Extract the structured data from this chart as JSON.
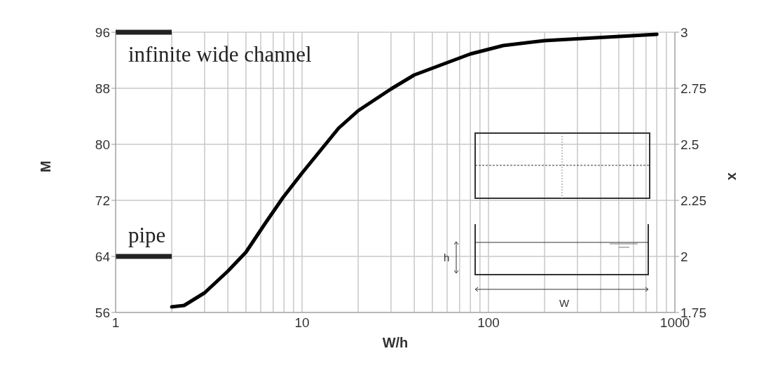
{
  "chart_data": {
    "type": "line",
    "xlabel": "W/h",
    "ylabel": "M",
    "y2label": "x",
    "log": "x",
    "xlim": [
      1,
      1000
    ],
    "xticks": [
      1,
      {
        "value": 2,
        "label": null
      },
      {
        "value": 3,
        "label": null
      },
      {
        "value": 4,
        "label": null
      },
      {
        "value": 5,
        "label": null
      },
      {
        "value": 6,
        "label": null
      },
      {
        "value": 7,
        "label": null
      },
      {
        "value": 8,
        "label": null
      },
      {
        "value": 9,
        "label": null
      },
      10,
      {
        "value": 20,
        "label": null
      },
      {
        "value": 30,
        "label": null
      },
      {
        "value": 40,
        "label": null
      },
      {
        "value": 50,
        "label": null
      },
      {
        "value": 60,
        "label": null
      },
      {
        "value": 70,
        "label": null
      },
      {
        "value": 80,
        "label": null
      },
      {
        "value": 90,
        "label": null
      },
      100,
      {
        "value": 200,
        "label": null
      },
      {
        "value": 300,
        "label": null
      },
      {
        "value": 400,
        "label": null
      },
      {
        "value": 500,
        "label": null
      },
      {
        "value": 600,
        "label": null
      },
      {
        "value": 700,
        "label": null
      },
      {
        "value": 800,
        "label": null
      },
      {
        "value": 900,
        "label": null
      },
      1000
    ],
    "ylim": [
      56,
      96
    ],
    "yticks": [
      56,
      64,
      72,
      80,
      88,
      96
    ],
    "y2lim": [
      1.75,
      3
    ],
    "y2ticks": [
      1.75,
      2,
      2.25,
      2.5,
      2.75,
      3
    ],
    "grid": true,
    "marker": "none",
    "line_style": "solid",
    "series": [
      {
        "color": "#000000",
        "x": [
          2,
          2.33,
          3,
          4,
          5,
          6.3,
          7.9,
          10,
          15.7,
          20,
          30,
          40,
          80,
          120,
          200,
          800
        ],
        "values": [
          56.8,
          57,
          58.8,
          61.9,
          64.6,
          68.6,
          72.4,
          75.9,
          82.3,
          84.8,
          87.9,
          89.9,
          92.9,
          94.1,
          94.8,
          95.7
        ]
      },
      {
        "name": "pipe",
        "color": "#222222",
        "x": [
          1,
          2
        ],
        "values": [
          64,
          64
        ]
      },
      {
        "name": "infinite wide channel",
        "color": "#222222",
        "x": [
          1,
          2
        ],
        "values": [
          96,
          96
        ]
      }
    ],
    "annotations": [
      "h",
      "W"
    ]
  }
}
